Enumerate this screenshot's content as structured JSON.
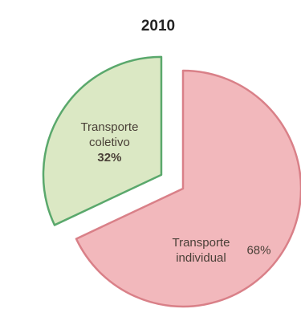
{
  "chart_data": {
    "type": "pie",
    "title": "2010",
    "exploded": true,
    "slices": [
      {
        "label_lines": [
          "Transporte",
          "individual"
        ],
        "value": 68,
        "value_label": "68%",
        "color": "#f2b8bc",
        "stroke": "#d98088"
      },
      {
        "label_lines": [
          "Transporte",
          "coletivo"
        ],
        "value": 32,
        "value_label": "32%",
        "color": "#dbe8c4",
        "stroke": "#5aa86c"
      }
    ]
  }
}
